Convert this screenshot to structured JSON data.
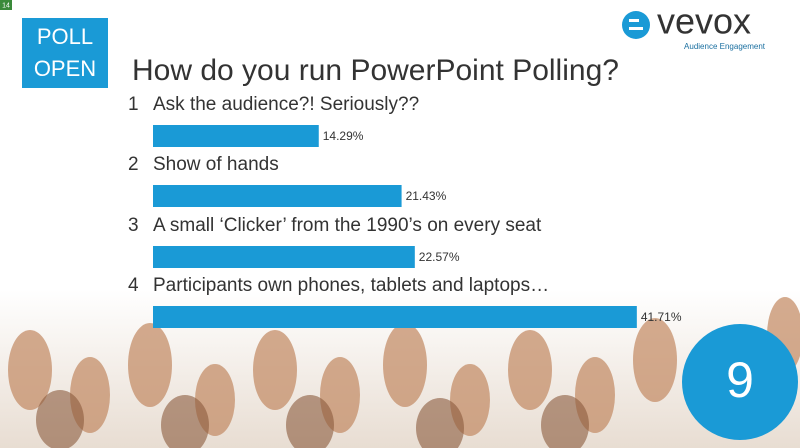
{
  "slide_number": "14",
  "poll_status": [
    "POLL",
    "OPEN"
  ],
  "logo": {
    "name": "vevox",
    "tagline": "Audience Engagement"
  },
  "badge": "9",
  "chart_data": {
    "type": "bar",
    "orientation": "horizontal",
    "title": "How do you run PowerPoint Polling?",
    "option_numbers": [
      "1",
      "2",
      "3",
      "4"
    ],
    "categories": [
      "Ask the audience?! Seriously??",
      "Show of hands",
      "A small ‘Clicker’ from the 1990’s on every seat",
      "Participants own phones, tablets and laptops…"
    ],
    "values": [
      14.29,
      21.43,
      22.57,
      41.71
    ],
    "value_labels": [
      "14.29%",
      "21.43%",
      "22.57%",
      "41.71%"
    ],
    "color": "#1a9ad6"
  }
}
